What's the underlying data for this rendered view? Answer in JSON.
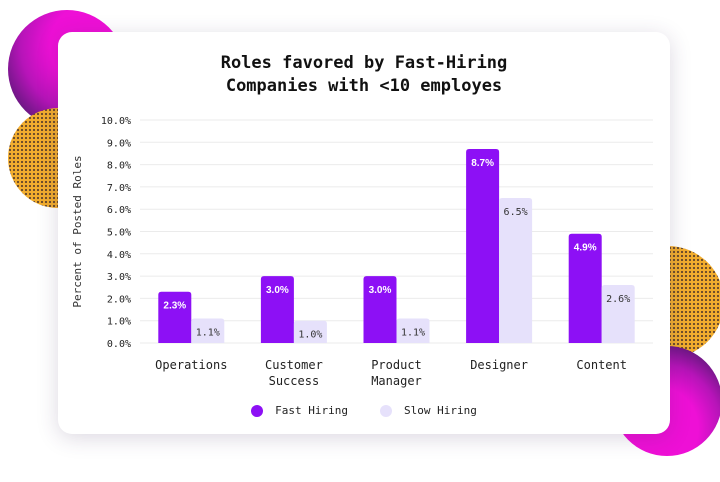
{
  "colors": {
    "fast": "#8d10f5",
    "slow": "#e6e1fb",
    "magenta": "#ee10d6",
    "orange": "#f2ad2e",
    "navy": "#1f1b4d"
  },
  "chart_data": {
    "type": "bar",
    "title": [
      "Roles favored by Fast-Hiring",
      "Companies with <10 employes"
    ],
    "ylabel": "Percent of Posted Roles",
    "xlabel": "",
    "ylim": [
      0,
      10
    ],
    "yticks": [
      "0.0%",
      "1.0%",
      "2.0%",
      "3.0%",
      "4.0%",
      "5.0%",
      "6.0%",
      "7.0%",
      "8.0%",
      "9.0%",
      "10.0%"
    ],
    "categories": [
      [
        "Operations"
      ],
      [
        "Customer",
        "Success"
      ],
      [
        "Product",
        "Manager"
      ],
      [
        "Designer"
      ],
      [
        "Content"
      ]
    ],
    "series": [
      {
        "name": "Fast Hiring",
        "values": [
          2.3,
          3.0,
          3.0,
          8.7,
          4.9
        ],
        "labels": [
          "2.3%",
          "3.0%",
          "3.0%",
          "8.7%",
          "4.9%"
        ]
      },
      {
        "name": "Slow Hiring",
        "values": [
          1.1,
          1.0,
          1.1,
          6.5,
          2.6
        ],
        "labels": [
          "1.1%",
          "1.0%",
          "1.1%",
          "6.5%",
          "2.6%"
        ]
      }
    ],
    "grid": true,
    "legend": "bottom-center"
  }
}
